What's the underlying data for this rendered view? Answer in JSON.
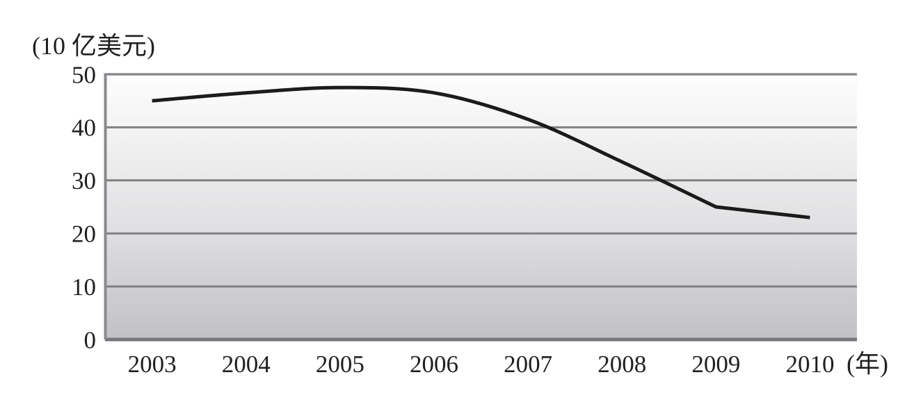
{
  "figure": {
    "background": "#ffffff",
    "text_color": "#221f20"
  },
  "chart_data": {
    "type": "line",
    "title": "",
    "y_axis_unit_label": "(10 亿美元)",
    "x_axis_unit_label": "(年)",
    "categories": [
      "2003",
      "2004",
      "2005",
      "2006",
      "2007",
      "2008",
      "2009",
      "2010"
    ],
    "series": [
      {
        "name": "value",
        "values": [
          45,
          46.5,
          47.5,
          46.5,
          41.5,
          33.5,
          25,
          23
        ]
      }
    ],
    "ylim": [
      0,
      50
    ],
    "yticks": [
      0,
      10,
      20,
      30,
      40,
      50
    ],
    "grid": "horizontal",
    "legend": "none",
    "line_style": "smooth-with-corner",
    "corner_at_index": 6,
    "colors": {
      "line": "#1d1a1b",
      "grid": "#808083",
      "axis": "#77777b",
      "frame": "#8a8a8e",
      "plot_bg_top": "#fdfdfd",
      "plot_bg_mid": "#e2e2e4",
      "plot_bg_bottom": "#c1c1c5"
    }
  }
}
